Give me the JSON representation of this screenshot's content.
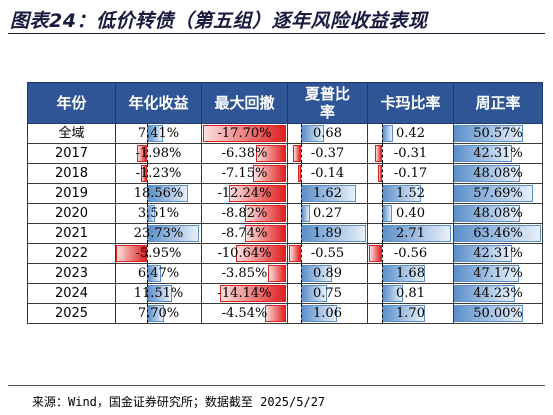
{
  "title": "图表24：低价转债（第五组）逐年风险收益表现",
  "headers": [
    "年份",
    "年化收益",
    "最大回撤",
    "夏普比\n率",
    "卡玛比率",
    "周正率"
  ],
  "source": "来源：Wind，国金证券研究所；数据截至 2025/5/27",
  "rows": [
    {
      "year": "全域",
      "cells": [
        {
          "text": "7.41%",
          "v": 7.41
        },
        {
          "text": "-17.70%",
          "v": -17.7
        },
        {
          "text": "0.68",
          "v": 0.68
        },
        {
          "text": "0.42",
          "v": 0.42
        },
        {
          "text": "50.57%",
          "v": 50.57
        }
      ]
    },
    {
      "year": "2017",
      "cells": [
        {
          "text": "-1.98%",
          "v": -1.98
        },
        {
          "text": "-6.38%",
          "v": -6.38
        },
        {
          "text": "-0.37",
          "v": -0.37
        },
        {
          "text": "-0.31",
          "v": -0.31
        },
        {
          "text": "42.31%",
          "v": 42.31
        }
      ]
    },
    {
      "year": "2018",
      "cells": [
        {
          "text": "-1.23%",
          "v": -1.23
        },
        {
          "text": "-7.15%",
          "v": -7.15
        },
        {
          "text": "-0.14",
          "v": -0.14
        },
        {
          "text": "-0.17",
          "v": -0.17
        },
        {
          "text": "48.08%",
          "v": 48.08
        }
      ]
    },
    {
      "year": "2019",
      "cells": [
        {
          "text": "18.56%",
          "v": 18.56
        },
        {
          "text": "-12.24%",
          "v": -12.24
        },
        {
          "text": "1.62",
          "v": 1.62
        },
        {
          "text": "1.52",
          "v": 1.52
        },
        {
          "text": "57.69%",
          "v": 57.69
        }
      ]
    },
    {
      "year": "2020",
      "cells": [
        {
          "text": "3.51%",
          "v": 3.51
        },
        {
          "text": "-8.82%",
          "v": -8.82
        },
        {
          "text": "0.27",
          "v": 0.27
        },
        {
          "text": "0.40",
          "v": 0.4
        },
        {
          "text": "48.08%",
          "v": 48.08
        }
      ]
    },
    {
      "year": "2021",
      "cells": [
        {
          "text": "23.73%",
          "v": 23.73
        },
        {
          "text": "-8.74%",
          "v": -8.74
        },
        {
          "text": "1.89",
          "v": 1.89
        },
        {
          "text": "2.71",
          "v": 2.71
        },
        {
          "text": "63.46%",
          "v": 63.46
        }
      ]
    },
    {
      "year": "2022",
      "cells": [
        {
          "text": "-5.95%",
          "v": -5.95
        },
        {
          "text": "-10.64%",
          "v": -10.64
        },
        {
          "text": "-0.55",
          "v": -0.55
        },
        {
          "text": "-0.56",
          "v": -0.56
        },
        {
          "text": "42.31%",
          "v": 42.31
        }
      ]
    },
    {
      "year": "2023",
      "cells": [
        {
          "text": "6.47%",
          "v": 6.47
        },
        {
          "text": "-3.85%",
          "v": -3.85
        },
        {
          "text": "0.89",
          "v": 0.89
        },
        {
          "text": "1.68",
          "v": 1.68
        },
        {
          "text": "47.17%",
          "v": 47.17
        }
      ]
    },
    {
      "year": "2024",
      "cells": [
        {
          "text": "11.51%",
          "v": 11.51
        },
        {
          "text": "-14.14%",
          "v": -14.14
        },
        {
          "text": "0.75",
          "v": 0.75
        },
        {
          "text": "0.81",
          "v": 0.81
        },
        {
          "text": "44.23%",
          "v": 44.23
        }
      ]
    },
    {
      "year": "2025",
      "cells": [
        {
          "text": "7.70%",
          "v": 7.7
        },
        {
          "text": "-4.54%",
          "v": -4.54
        },
        {
          "text": "1.06",
          "v": 1.06
        },
        {
          "text": "1.70",
          "v": 1.7
        },
        {
          "text": "50.00%",
          "v": 50.0
        }
      ]
    }
  ]
}
